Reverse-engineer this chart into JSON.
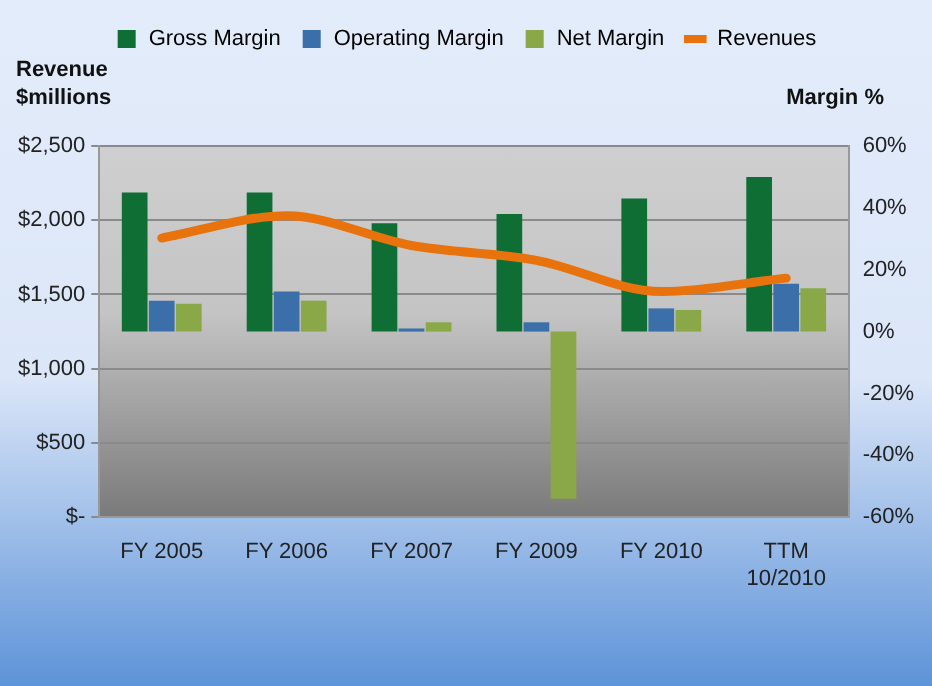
{
  "chart_data": {
    "type": "bar",
    "categories": [
      "FY 2005",
      "FY 2006",
      "FY 2007",
      "FY 2009",
      "FY 2010",
      "TTM\n10/2010"
    ],
    "series": [
      {
        "name": "Gross Margin",
        "color": "#0f6e34",
        "axis": "y2",
        "values": [
          45,
          45,
          35,
          38,
          43,
          50
        ]
      },
      {
        "name": "Operating Margin",
        "color": "#3b6faa",
        "axis": "y2",
        "values": [
          10,
          13,
          1,
          3,
          7.5,
          15.5
        ]
      },
      {
        "name": "Net Margin",
        "color": "#8aa848",
        "axis": "y2",
        "values": [
          9,
          10,
          3,
          -54,
          7,
          14
        ]
      },
      {
        "name": "Revenues",
        "type": "line",
        "color": "#e8720c",
        "axis": "y",
        "values": [
          1880,
          2030,
          1830,
          1730,
          1520,
          1610
        ]
      }
    ],
    "ylabel": "Revenue $millions",
    "y2label": "Margin %",
    "ylim": [
      0,
      2500
    ],
    "yticks": [
      {
        "value": 0,
        "label": "$-"
      },
      {
        "value": 500,
        "label": "$500"
      },
      {
        "value": 1000,
        "label": "$1,000"
      },
      {
        "value": 1500,
        "label": "$1,500"
      },
      {
        "value": 2000,
        "label": "$2,000"
      },
      {
        "value": 2500,
        "label": "$2,500"
      }
    ],
    "y2lim": [
      -60,
      60
    ],
    "y2ticks": [
      {
        "value": -60,
        "label": "-60%"
      },
      {
        "value": -40,
        "label": "-40%"
      },
      {
        "value": -20,
        "label": "-20%"
      },
      {
        "value": 0,
        "label": "0%"
      },
      {
        "value": 20,
        "label": "20%"
      },
      {
        "value": 40,
        "label": "40%"
      },
      {
        "value": 60,
        "label": "60%"
      }
    ],
    "grid": "y",
    "legend": "top"
  }
}
